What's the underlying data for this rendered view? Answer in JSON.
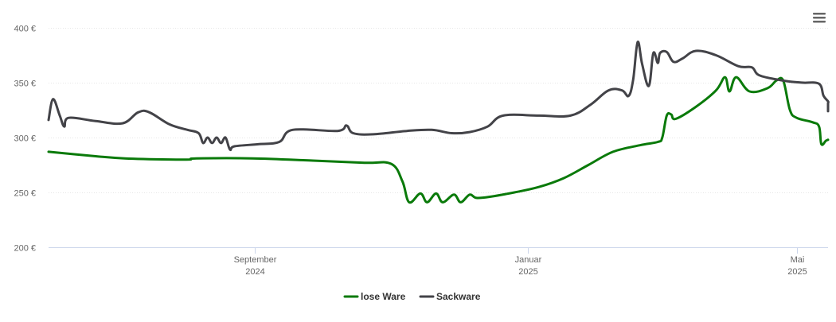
{
  "chart_data": {
    "type": "line",
    "title": "",
    "xlabel": "",
    "ylabel": "",
    "ylim": [
      200,
      400
    ],
    "xlim": [
      "2024-06-01",
      "2025-05-15"
    ],
    "grid": true,
    "legend_position": "bottom-center",
    "y_ticks": [
      {
        "value": 200,
        "label": "200 €"
      },
      {
        "value": 250,
        "label": "250 €"
      },
      {
        "value": 300,
        "label": "300 €"
      },
      {
        "value": 350,
        "label": "350 €"
      },
      {
        "value": 400,
        "label": "400 €"
      }
    ],
    "x_ticks": [
      {
        "date": "2024-09-01",
        "line1": "September",
        "line2": "2024"
      },
      {
        "date": "2025-01-01",
        "line1": "Januar",
        "line2": "2025"
      },
      {
        "date": "2025-05-01",
        "line1": "Mai",
        "line2": "2025"
      }
    ],
    "series": [
      {
        "name": "lose Ware",
        "color": "#0a7a0a",
        "points": [
          [
            "2024-06-01",
            287
          ],
          [
            "2024-06-22",
            283
          ],
          [
            "2024-07-05",
            281
          ],
          [
            "2024-07-25",
            280
          ],
          [
            "2024-08-03",
            280
          ],
          [
            "2024-08-06",
            281
          ],
          [
            "2024-08-31",
            281
          ],
          [
            "2024-09-27",
            279
          ],
          [
            "2024-10-20",
            277
          ],
          [
            "2024-11-01",
            276
          ],
          [
            "2024-11-06",
            260
          ],
          [
            "2024-11-09",
            241
          ],
          [
            "2024-11-14",
            249
          ],
          [
            "2024-11-17",
            241
          ],
          [
            "2024-11-21",
            249
          ],
          [
            "2024-11-24",
            241
          ],
          [
            "2024-11-29",
            248
          ],
          [
            "2024-12-02",
            241
          ],
          [
            "2024-12-06",
            248
          ],
          [
            "2024-12-09",
            245
          ],
          [
            "2024-12-15",
            246
          ],
          [
            "2024-12-26",
            250
          ],
          [
            "2025-01-06",
            255
          ],
          [
            "2025-01-17",
            263
          ],
          [
            "2025-01-28",
            275
          ],
          [
            "2025-02-08",
            287
          ],
          [
            "2025-02-20",
            293
          ],
          [
            "2025-02-28",
            296
          ],
          [
            "2025-03-02",
            300
          ],
          [
            "2025-03-04",
            320
          ],
          [
            "2025-03-06",
            321
          ],
          [
            "2025-03-08",
            317
          ],
          [
            "2025-03-17",
            328
          ],
          [
            "2025-03-26",
            343
          ],
          [
            "2025-03-30",
            355
          ],
          [
            "2025-04-01",
            342
          ],
          [
            "2025-04-04",
            355
          ],
          [
            "2025-04-10",
            342
          ],
          [
            "2025-04-18",
            345
          ],
          [
            "2025-04-22",
            352
          ],
          [
            "2025-04-25",
            352
          ],
          [
            "2025-04-28",
            325
          ],
          [
            "2025-05-01",
            318
          ],
          [
            "2025-05-08",
            314
          ],
          [
            "2025-05-11",
            310
          ],
          [
            "2025-05-12",
            294
          ],
          [
            "2025-05-14",
            297
          ],
          [
            "2025-05-15",
            298
          ]
        ]
      },
      {
        "name": "Sackware",
        "color": "#434348",
        "points": [
          [
            "2024-06-01",
            316
          ],
          [
            "2024-06-03",
            335
          ],
          [
            "2024-06-06",
            320
          ],
          [
            "2024-06-08",
            310
          ],
          [
            "2024-06-10",
            318
          ],
          [
            "2024-06-22",
            315
          ],
          [
            "2024-07-04",
            313
          ],
          [
            "2024-07-11",
            323
          ],
          [
            "2024-07-16",
            323
          ],
          [
            "2024-07-25",
            312
          ],
          [
            "2024-08-02",
            307
          ],
          [
            "2024-08-07",
            304
          ],
          [
            "2024-08-09",
            295
          ],
          [
            "2024-08-11",
            300
          ],
          [
            "2024-08-13",
            295
          ],
          [
            "2024-08-15",
            300
          ],
          [
            "2024-08-17",
            295
          ],
          [
            "2024-08-19",
            300
          ],
          [
            "2024-08-21",
            289
          ],
          [
            "2024-08-23",
            292
          ],
          [
            "2024-09-03",
            294
          ],
          [
            "2024-09-12",
            296
          ],
          [
            "2024-09-18",
            307
          ],
          [
            "2024-10-08",
            306
          ],
          [
            "2024-10-12",
            311
          ],
          [
            "2024-10-15",
            304
          ],
          [
            "2024-10-24",
            303
          ],
          [
            "2024-11-08",
            306
          ],
          [
            "2024-11-19",
            307
          ],
          [
            "2024-11-28",
            304
          ],
          [
            "2024-12-06",
            305
          ],
          [
            "2024-12-14",
            310
          ],
          [
            "2024-12-21",
            320
          ],
          [
            "2025-01-06",
            320
          ],
          [
            "2025-01-20",
            320
          ],
          [
            "2025-01-29",
            330
          ],
          [
            "2025-02-06",
            343
          ],
          [
            "2025-02-12",
            343
          ],
          [
            "2025-02-15",
            338
          ],
          [
            "2025-02-17",
            353
          ],
          [
            "2025-02-19",
            387
          ],
          [
            "2025-02-21",
            367
          ],
          [
            "2025-02-24",
            347
          ],
          [
            "2025-02-26",
            377
          ],
          [
            "2025-02-28",
            368
          ],
          [
            "2025-03-01",
            377
          ],
          [
            "2025-03-04",
            378
          ],
          [
            "2025-03-07",
            369
          ],
          [
            "2025-03-11",
            372
          ],
          [
            "2025-03-17",
            379
          ],
          [
            "2025-03-26",
            375
          ],
          [
            "2025-04-05",
            365
          ],
          [
            "2025-04-11",
            364
          ],
          [
            "2025-04-14",
            357
          ],
          [
            "2025-04-22",
            353
          ],
          [
            "2025-04-28",
            351
          ],
          [
            "2025-05-04",
            350
          ],
          [
            "2025-05-11",
            349
          ],
          [
            "2025-05-13",
            338
          ],
          [
            "2025-05-21",
            333
          ],
          [
            "2025-05-26",
            331
          ],
          [
            "2025-05-28",
            324
          ]
        ]
      }
    ]
  },
  "chart_ui": {
    "menu_icon": "hamburger-menu-icon"
  }
}
